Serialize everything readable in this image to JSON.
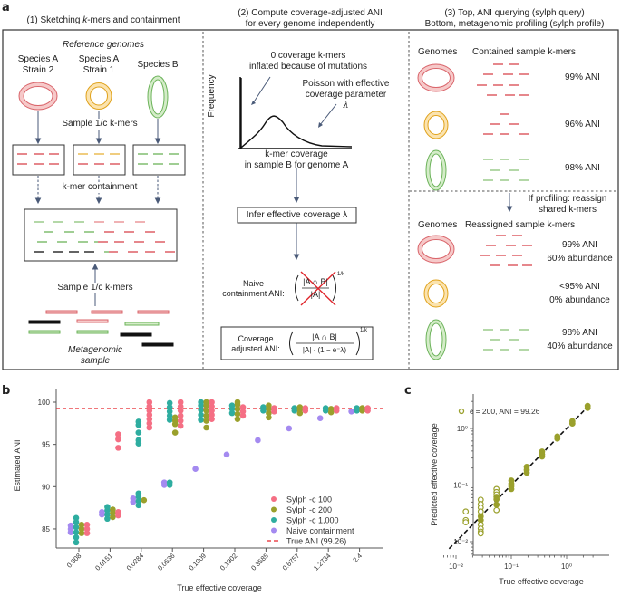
{
  "panel_a": {
    "label": "a",
    "step1": {
      "title_pre": "(1) Sketching ",
      "title_k": "k",
      "title_post": "-mers and containment",
      "reference_genomes": "Reference genomes",
      "genomes": [
        {
          "line1": "Species A",
          "line2": "Strain 2",
          "color": "#e8898c",
          "fill": "#f6c9c9"
        },
        {
          "line1": "Species A",
          "line2": "Strain 1",
          "color": "#e8b23a",
          "fill": "#fbe3ae"
        },
        {
          "line1": "Species B",
          "line2": "",
          "color": "#8cc47a",
          "fill": "#d4ecc8"
        }
      ],
      "sample_kmers_top": "Sample 1/c k-mers",
      "kmer_containment": "k-mer containment",
      "sample_kmers_bottom": "Sample 1/c k-mers",
      "metagenomic_sample_l1": "Metagenomic",
      "metagenomic_sample_l2": "sample"
    },
    "step2": {
      "title_l1": "(2) Compute coverage-adjusted ANI",
      "title_l2": "for every genome independently",
      "zero_cov_l1": "0 coverage k-mers",
      "zero_cov_l2": "inflated because of mutations",
      "poisson_l1": "Poisson with effective",
      "poisson_l2": "coverage parameter",
      "lambda": "λ",
      "y_axis": "Frequency",
      "x_axis_l1": "k-mer coverage",
      "x_axis_l2": "in sample B for genome A",
      "infer_box": "Infer effective coverage λ",
      "naive_l1": "Naive",
      "naive_l2": "containment ANI:",
      "naive_num": "|A ∩ B|",
      "naive_den": "|A|",
      "exponent": "1/k",
      "coverage_l1": "Coverage",
      "coverage_l2": "adjusted ANI:",
      "cov_num": "|A ∩ B|",
      "cov_den": "|A| · (1 − e⁻λ)"
    },
    "step3": {
      "title_l1": "(3) Top, ANI querying (sylph query)",
      "title_l2": "Bottom, metagenomic profiling (sylph profile)",
      "genomes_header": "Genomes",
      "contained_header": "Contained sample k-mers",
      "query_results": [
        "99% ANI",
        "96% ANI",
        "98% ANI"
      ],
      "profiling_note_l1": "If profiling: reassign",
      "profiling_note_l2": "shared k-mers",
      "reassigned_header": "Reassigned sample k-mers",
      "profile_results": [
        {
          "ani": "99% ANI",
          "abundance": "60% abundance"
        },
        {
          "ani": "<95% ANI",
          "abundance": "0% abundance"
        },
        {
          "ani": "98% ANI",
          "abundance": "40% abundance"
        }
      ]
    }
  },
  "chart_data": [
    {
      "panel": "b",
      "type": "scatter",
      "title": "",
      "xlabel": "True effective coverage",
      "ylabel": "Estimated ANI",
      "categories": [
        "0.008",
        "0.0151",
        "0.0284",
        "0.0536",
        "0.1009",
        "0.1902",
        "0.3585",
        "0.6757",
        "1.2734",
        "2.4"
      ],
      "yticks": [
        85,
        90,
        95,
        100
      ],
      "ylim": [
        82.7,
        100.9
      ],
      "reference_line": {
        "name": "True ANI (99.26)",
        "value": 99.26,
        "color": "#e8252a"
      },
      "series": [
        {
          "name": "Naive containment",
          "color": "#a48af0",
          "points": [
            [
              0,
              84.6
            ],
            [
              0,
              85.0
            ],
            [
              0,
              85.4
            ],
            [
              1,
              86.7
            ],
            [
              1,
              87.0
            ],
            [
              2,
              88.2
            ],
            [
              2,
              88.6
            ],
            [
              3,
              90.2
            ],
            [
              3,
              90.5
            ],
            [
              4,
              92.1
            ],
            [
              5,
              93.8
            ],
            [
              6,
              95.5
            ],
            [
              7,
              96.9
            ],
            [
              8,
              98.1
            ],
            [
              9,
              98.9
            ]
          ]
        },
        {
          "name": "Sylph -c 1,000",
          "color": "#2eada0",
          "points": [
            [
              0,
              83.4
            ],
            [
              0,
              84.0
            ],
            [
              0,
              84.6
            ],
            [
              0,
              85.2
            ],
            [
              0,
              85.8
            ],
            [
              0,
              86.3
            ],
            [
              1,
              86.2
            ],
            [
              1,
              86.7
            ],
            [
              1,
              87.2
            ],
            [
              1,
              87.6
            ],
            [
              2,
              87.8
            ],
            [
              2,
              88.3
            ],
            [
              2,
              88.8
            ],
            [
              2,
              89.2
            ],
            [
              2,
              95.1
            ],
            [
              2,
              95.5
            ],
            [
              2,
              96.4
            ],
            [
              2,
              97.3
            ],
            [
              2,
              97.7
            ],
            [
              3,
              90.2
            ],
            [
              3,
              90.5
            ],
            [
              3,
              97.9
            ],
            [
              3,
              98.4
            ],
            [
              3,
              98.9
            ],
            [
              3,
              99.4
            ],
            [
              3,
              99.9
            ],
            [
              4,
              97.9
            ],
            [
              4,
              98.5
            ],
            [
              4,
              99.1
            ],
            [
              4,
              99.6
            ],
            [
              4,
              100.0
            ],
            [
              5,
              98.7
            ],
            [
              5,
              99.2
            ],
            [
              5,
              99.6
            ],
            [
              6,
              99.0
            ],
            [
              6,
              99.4
            ],
            [
              7,
              99.0
            ],
            [
              7,
              99.3
            ],
            [
              8,
              99.0
            ],
            [
              8,
              99.3
            ],
            [
              9,
              99.0
            ],
            [
              9,
              99.3
            ]
          ]
        },
        {
          "name": "Sylph -c 200",
          "color": "#9aa02c",
          "points": [
            [
              0,
              84.5
            ],
            [
              0,
              85.0
            ],
            [
              0,
              85.5
            ],
            [
              1,
              86.4
            ],
            [
              1,
              86.9
            ],
            [
              1,
              87.3
            ],
            [
              2,
              88.4
            ],
            [
              3,
              96.4
            ],
            [
              3,
              97.4
            ],
            [
              3,
              97.8
            ],
            [
              3,
              98.2
            ],
            [
              4,
              97.0
            ],
            [
              4,
              97.8
            ],
            [
              4,
              98.4
            ],
            [
              4,
              99.0
            ],
            [
              4,
              99.6
            ],
            [
              4,
              100.0
            ],
            [
              5,
              98.0
            ],
            [
              5,
              98.6
            ],
            [
              5,
              99.2
            ],
            [
              5,
              99.7
            ],
            [
              5,
              100.0
            ],
            [
              6,
              98.2
            ],
            [
              6,
              98.7
            ],
            [
              6,
              99.2
            ],
            [
              6,
              99.6
            ],
            [
              7,
              98.7
            ],
            [
              7,
              99.1
            ],
            [
              7,
              99.4
            ],
            [
              8,
              98.8
            ],
            [
              8,
              99.2
            ],
            [
              9,
              99.0
            ],
            [
              9,
              99.3
            ]
          ]
        },
        {
          "name": "Sylph -c 100",
          "color": "#f56f84",
          "points": [
            [
              0,
              84.5
            ],
            [
              0,
              85.0
            ],
            [
              0,
              85.5
            ],
            [
              1,
              86.6
            ],
            [
              1,
              87.0
            ],
            [
              1,
              94.6
            ],
            [
              1,
              95.6
            ],
            [
              1,
              96.2
            ],
            [
              2,
              97.0
            ],
            [
              2,
              97.5
            ],
            [
              2,
              98.0
            ],
            [
              2,
              98.5
            ],
            [
              2,
              99.0
            ],
            [
              2,
              99.5
            ],
            [
              2,
              100.0
            ],
            [
              3,
              97.2
            ],
            [
              3,
              97.8
            ],
            [
              3,
              98.4
            ],
            [
              3,
              99.0
            ],
            [
              3,
              99.5
            ],
            [
              3,
              100.0
            ],
            [
              4,
              98.0
            ],
            [
              4,
              98.5
            ],
            [
              4,
              99.0
            ],
            [
              4,
              99.5
            ],
            [
              4,
              100.0
            ],
            [
              5,
              98.4
            ],
            [
              5,
              98.9
            ],
            [
              5,
              99.4
            ],
            [
              6,
              98.9
            ],
            [
              6,
              99.3
            ],
            [
              7,
              99.0
            ],
            [
              7,
              99.3
            ],
            [
              8,
              99.0
            ],
            [
              8,
              99.3
            ],
            [
              9,
              99.0
            ],
            [
              9,
              99.3
            ]
          ]
        }
      ],
      "legend": [
        "Sylph -c 100",
        "Sylph -c 200",
        "Sylph -c 1,000",
        "Naive containment",
        "True ANI (99.26)"
      ],
      "legend_position": "bottom-right",
      "grid": false
    },
    {
      "panel": "c",
      "type": "scatter",
      "title": "",
      "xlabel": "True effective coverage",
      "ylabel": "Predicted effective coverage",
      "xscale": "log",
      "yscale": "log",
      "xlim": [
        0.006,
        3.5
      ],
      "ylim": [
        0.006,
        3.5
      ],
      "xticks": [
        "10⁻²",
        "10⁻¹",
        "10⁰"
      ],
      "yticks": [
        "10⁻²",
        "10⁻¹",
        "10⁰"
      ],
      "series": [
        {
          "name": "c = 200, ANI = 99.26",
          "color": "#9aa02c",
          "points": [
            [
              0.015,
              0.034
            ],
            [
              0.015,
              0.024
            ],
            [
              0.015,
              0.022
            ],
            [
              0.028,
              0.055
            ],
            [
              0.028,
              0.046
            ],
            [
              0.028,
              0.04
            ],
            [
              0.028,
              0.034
            ],
            [
              0.028,
              0.028
            ],
            [
              0.028,
              0.024
            ],
            [
              0.028,
              0.02
            ],
            [
              0.028,
              0.017
            ],
            [
              0.028,
              0.015
            ],
            [
              0.028,
              0.014
            ],
            [
              0.054,
              0.085
            ],
            [
              0.054,
              0.075
            ],
            [
              0.054,
              0.068
            ],
            [
              0.054,
              0.062
            ],
            [
              0.054,
              0.056
            ],
            [
              0.054,
              0.045
            ],
            [
              0.054,
              0.036
            ],
            [
              0.1,
              0.12
            ],
            [
              0.1,
              0.105
            ],
            [
              0.1,
              0.095
            ],
            [
              0.1,
              0.085
            ],
            [
              0.19,
              0.21
            ],
            [
              0.19,
              0.185
            ],
            [
              0.19,
              0.165
            ],
            [
              0.36,
              0.39
            ],
            [
              0.36,
              0.35
            ],
            [
              0.36,
              0.32
            ],
            [
              0.68,
              0.72
            ],
            [
              0.68,
              0.66
            ],
            [
              1.27,
              1.34
            ],
            [
              1.27,
              1.22
            ],
            [
              2.4,
              2.5
            ],
            [
              2.4,
              2.3
            ]
          ]
        }
      ],
      "reference_line": {
        "name": "y = x",
        "color": "#111111"
      },
      "legend": [
        "c = 200, ANI = 99.26"
      ],
      "legend_position": "top-left"
    }
  ]
}
